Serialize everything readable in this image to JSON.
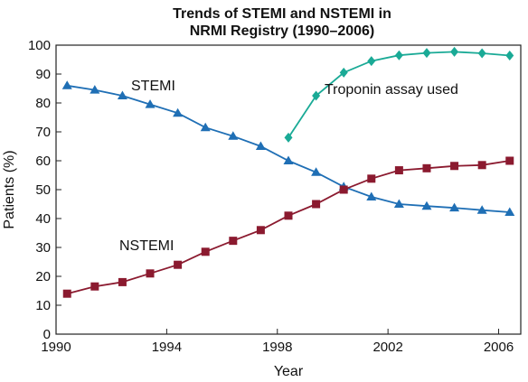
{
  "chart_data": {
    "type": "line",
    "title_lines": [
      "Trends of STEMI and NSTEMI in",
      "NRMI Registry (1990–2006)"
    ],
    "xlabel": "Year",
    "ylabel": "Patients (%)",
    "xlim": [
      1990,
      2006.8
    ],
    "ylim": [
      0,
      100
    ],
    "x_ticks": [
      1990,
      1994,
      1998,
      2002,
      2006
    ],
    "y_ticks": [
      0,
      10,
      20,
      30,
      40,
      50,
      60,
      70,
      80,
      90,
      100
    ],
    "grid": false,
    "series": [
      {
        "name": "STEMI",
        "color": "#1f6fb5",
        "marker": "triangle",
        "x": [
          1990.4,
          1991.4,
          1992.4,
          1993.4,
          1994.4,
          1995.4,
          1996.4,
          1997.4,
          1998.4,
          1999.4,
          2000.4,
          2001.4,
          2002.4,
          2003.4,
          2004.4,
          2005.4,
          2006.4
        ],
        "values": [
          86,
          84.5,
          82.5,
          79.5,
          76.5,
          71.5,
          68.5,
          65,
          60,
          56,
          51,
          47.5,
          45,
          44.3,
          43.7,
          42.9,
          42.2
        ]
      },
      {
        "name": "NSTEMI",
        "color": "#8b1a2f",
        "marker": "square",
        "x": [
          1990.4,
          1991.4,
          1992.4,
          1993.4,
          1994.4,
          1995.4,
          1996.4,
          1997.4,
          1998.4,
          1999.4,
          2000.4,
          2001.4,
          2002.4,
          2003.4,
          2004.4,
          2005.4,
          2006.4
        ],
        "values": [
          14,
          16.5,
          18,
          21,
          24,
          28.5,
          32.3,
          36,
          41,
          45,
          50,
          53.8,
          56.7,
          57.4,
          58.2,
          58.5,
          60
        ]
      },
      {
        "name": "Troponin assay used",
        "color": "#1aaa96",
        "marker": "diamond",
        "x": [
          1998.4,
          1999.4,
          2000.4,
          2001.4,
          2002.4,
          2003.4,
          2004.4,
          2005.4,
          2006.4
        ],
        "values": [
          68,
          82.5,
          90.5,
          94.5,
          96.5,
          97.3,
          97.7,
          97.2,
          96.4
        ]
      }
    ]
  }
}
